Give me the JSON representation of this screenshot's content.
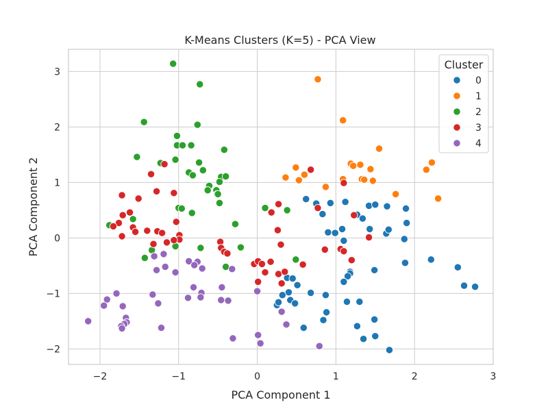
{
  "chart_data": {
    "type": "scatter",
    "title": "K-Means Clusters (K=5) - PCA View",
    "xlabel": "PCA Component 1",
    "ylabel": "PCA Component 2",
    "xlim": [
      -2.4,
      3.0
    ],
    "ylim": [
      -2.28,
      3.4
    ],
    "xticks": [
      -2,
      -1,
      0,
      1,
      2,
      3
    ],
    "yticks": [
      -2,
      -1,
      0,
      1,
      2,
      3
    ],
    "grid": true,
    "legend": {
      "title": "Cluster",
      "placement": "top-right"
    },
    "series": [
      {
        "name": "0",
        "color": "#1f77b4",
        "points": [
          [
            0.62,
            0.7
          ],
          [
            0.75,
            0.62
          ],
          [
            0.83,
            0.43
          ],
          [
            0.93,
            0.63
          ],
          [
            1.12,
            0.65
          ],
          [
            1.27,
            0.42
          ],
          [
            1.34,
            0.35
          ],
          [
            1.42,
            0.58
          ],
          [
            1.5,
            0.6
          ],
          [
            1.65,
            0.57
          ],
          [
            1.89,
            0.53
          ],
          [
            1.9,
            0.27
          ],
          [
            0.9,
            0.1
          ],
          [
            0.99,
            0.09
          ],
          [
            1.08,
            0.16
          ],
          [
            1.43,
            0.16
          ],
          [
            1.64,
            0.08
          ],
          [
            1.67,
            0.15
          ],
          [
            1.87,
            -0.02
          ],
          [
            1.1,
            -0.05
          ],
          [
            1.88,
            -0.45
          ],
          [
            2.21,
            -0.39
          ],
          [
            2.55,
            -0.53
          ],
          [
            2.63,
            -0.86
          ],
          [
            2.77,
            -0.88
          ],
          [
            1.49,
            -0.58
          ],
          [
            1.18,
            -0.61
          ],
          [
            1.18,
            -0.64
          ],
          [
            1.15,
            -0.69
          ],
          [
            1.1,
            -0.79
          ],
          [
            0.38,
            -0.72
          ],
          [
            0.45,
            -0.73
          ],
          [
            0.51,
            -0.85
          ],
          [
            0.4,
            -0.98
          ],
          [
            0.32,
            -1.03
          ],
          [
            0.68,
            -0.99
          ],
          [
            0.87,
            -1.03
          ],
          [
            0.42,
            -1.12
          ],
          [
            0.48,
            -1.18
          ],
          [
            0.25,
            -1.21
          ],
          [
            0.27,
            -1.16
          ],
          [
            1.14,
            -1.15
          ],
          [
            1.3,
            -1.15
          ],
          [
            0.88,
            -1.34
          ],
          [
            0.84,
            -1.48
          ],
          [
            1.49,
            -1.47
          ],
          [
            1.27,
            -1.59
          ],
          [
            0.59,
            -1.62
          ],
          [
            1.5,
            -1.77
          ],
          [
            1.35,
            -1.82
          ],
          [
            1.68,
            -2.02
          ]
        ]
      },
      {
        "name": "1",
        "color": "#ff7f0e",
        "points": [
          [
            0.77,
            2.86
          ],
          [
            1.09,
            2.12
          ],
          [
            1.55,
            1.61
          ],
          [
            2.22,
            1.36
          ],
          [
            2.15,
            1.23
          ],
          [
            1.19,
            1.34
          ],
          [
            1.22,
            1.3
          ],
          [
            1.31,
            1.32
          ],
          [
            1.44,
            1.24
          ],
          [
            0.49,
            1.27
          ],
          [
            0.6,
            1.14
          ],
          [
            0.36,
            1.09
          ],
          [
            0.53,
            1.04
          ],
          [
            1.09,
            1.06
          ],
          [
            1.33,
            1.06
          ],
          [
            1.36,
            1.05
          ],
          [
            1.47,
            1.03
          ],
          [
            0.87,
            0.92
          ],
          [
            1.76,
            0.79
          ],
          [
            2.3,
            0.71
          ]
        ]
      },
      {
        "name": "2",
        "color": "#2ca02c",
        "points": [
          [
            -1.07,
            3.14
          ],
          [
            -0.73,
            2.77
          ],
          [
            -1.44,
            2.09
          ],
          [
            -0.76,
            2.04
          ],
          [
            -1.02,
            1.84
          ],
          [
            -1.02,
            1.67
          ],
          [
            -0.95,
            1.67
          ],
          [
            -0.84,
            1.67
          ],
          [
            -0.42,
            1.59
          ],
          [
            -1.53,
            1.46
          ],
          [
            -1.23,
            1.35
          ],
          [
            -1.04,
            1.41
          ],
          [
            -0.74,
            1.36
          ],
          [
            -0.69,
            1.22
          ],
          [
            -0.87,
            1.18
          ],
          [
            -0.82,
            1.13
          ],
          [
            -0.46,
            1.1
          ],
          [
            -0.4,
            1.11
          ],
          [
            -0.48,
            1.01
          ],
          [
            -0.61,
            0.94
          ],
          [
            -0.63,
            0.86
          ],
          [
            -0.52,
            0.86
          ],
          [
            -0.51,
            0.79
          ],
          [
            -0.5,
            0.79
          ],
          [
            -0.48,
            0.63
          ],
          [
            -1.0,
            0.54
          ],
          [
            -0.96,
            0.53
          ],
          [
            -0.83,
            0.45
          ],
          [
            0.1,
            0.54
          ],
          [
            0.38,
            0.5
          ],
          [
            -1.88,
            0.23
          ],
          [
            -1.58,
            0.34
          ],
          [
            -0.28,
            0.25
          ],
          [
            -1.34,
            -0.22
          ],
          [
            -1.04,
            -0.15
          ],
          [
            -0.72,
            -0.18
          ],
          [
            -0.21,
            -0.17
          ],
          [
            -1.43,
            -0.36
          ],
          [
            0.49,
            -0.39
          ],
          [
            -0.4,
            -0.52
          ]
        ]
      },
      {
        "name": "3",
        "color": "#d62728",
        "points": [
          [
            -1.18,
            1.33
          ],
          [
            0.68,
            1.23
          ],
          [
            -1.35,
            1.15
          ],
          [
            1.1,
            0.99
          ],
          [
            -1.28,
            0.84
          ],
          [
            -1.06,
            0.81
          ],
          [
            -1.72,
            0.77
          ],
          [
            -1.51,
            0.71
          ],
          [
            0.27,
            0.61
          ],
          [
            -1.62,
            0.46
          ],
          [
            -1.71,
            0.41
          ],
          [
            0.77,
            0.54
          ],
          [
            0.18,
            0.46
          ],
          [
            1.23,
            0.41
          ],
          [
            -1.76,
            0.27
          ],
          [
            -1.83,
            0.21
          ],
          [
            -1.58,
            0.19
          ],
          [
            -1.03,
            0.29
          ],
          [
            -1.55,
            0.11
          ],
          [
            -1.4,
            0.13
          ],
          [
            -1.27,
            0.12
          ],
          [
            -1.21,
            0.09
          ],
          [
            -0.99,
            0.05
          ],
          [
            -0.99,
            -0.03
          ],
          [
            -1.72,
            0.03
          ],
          [
            -1.06,
            -0.04
          ],
          [
            -1.15,
            -0.08
          ],
          [
            -1.32,
            -0.11
          ],
          [
            0.26,
            0.14
          ],
          [
            1.42,
            0.01
          ],
          [
            -0.47,
            -0.07
          ],
          [
            -0.46,
            -0.18
          ],
          [
            -0.42,
            -0.25
          ],
          [
            0.3,
            -0.12
          ],
          [
            -0.38,
            -0.28
          ],
          [
            1.06,
            -0.2
          ],
          [
            1.1,
            -0.24
          ],
          [
            0.86,
            -0.21
          ],
          [
            -0.04,
            -0.47
          ],
          [
            0.01,
            -0.42
          ],
          [
            0.06,
            -0.47
          ],
          [
            0.17,
            -0.43
          ],
          [
            1.2,
            -0.4
          ],
          [
            0.58,
            -0.48
          ],
          [
            0.1,
            -0.62
          ],
          [
            0.27,
            -0.65
          ],
          [
            0.35,
            -0.61
          ],
          [
            0.01,
            -0.79
          ],
          [
            0.31,
            -0.82
          ]
        ]
      },
      {
        "name": "4",
        "color": "#9467bd",
        "points": [
          [
            -1.31,
            -0.33
          ],
          [
            -1.19,
            -0.29
          ],
          [
            -0.87,
            -0.42
          ],
          [
            -0.76,
            -0.43
          ],
          [
            -0.8,
            -0.49
          ],
          [
            -1.17,
            -0.52
          ],
          [
            -0.32,
            -0.56
          ],
          [
            -0.7,
            -0.55
          ],
          [
            -1.28,
            -0.58
          ],
          [
            -1.04,
            -0.62
          ],
          [
            -0.81,
            -0.89
          ],
          [
            -0.45,
            -0.89
          ],
          [
            0.0,
            -0.96
          ],
          [
            -0.71,
            -0.99
          ],
          [
            -0.72,
            -1.07
          ],
          [
            -0.88,
            -1.08
          ],
          [
            -1.33,
            -1.02
          ],
          [
            -1.91,
            -1.11
          ],
          [
            -0.46,
            -1.12
          ],
          [
            -0.37,
            -1.13
          ],
          [
            -1.26,
            -1.18
          ],
          [
            -1.95,
            -1.22
          ],
          [
            -1.71,
            -1.23
          ],
          [
            -1.79,
            -1.0
          ],
          [
            0.31,
            -1.33
          ],
          [
            -1.67,
            -1.44
          ],
          [
            -1.66,
            -1.52
          ],
          [
            -1.69,
            -1.55
          ],
          [
            -1.73,
            -1.59
          ],
          [
            -1.72,
            -1.63
          ],
          [
            -2.15,
            -1.5
          ],
          [
            -1.22,
            -1.62
          ],
          [
            0.37,
            -1.56
          ],
          [
            0.01,
            -1.75
          ],
          [
            -0.31,
            -1.81
          ],
          [
            0.04,
            -1.9
          ],
          [
            0.79,
            -1.95
          ]
        ]
      }
    ]
  }
}
